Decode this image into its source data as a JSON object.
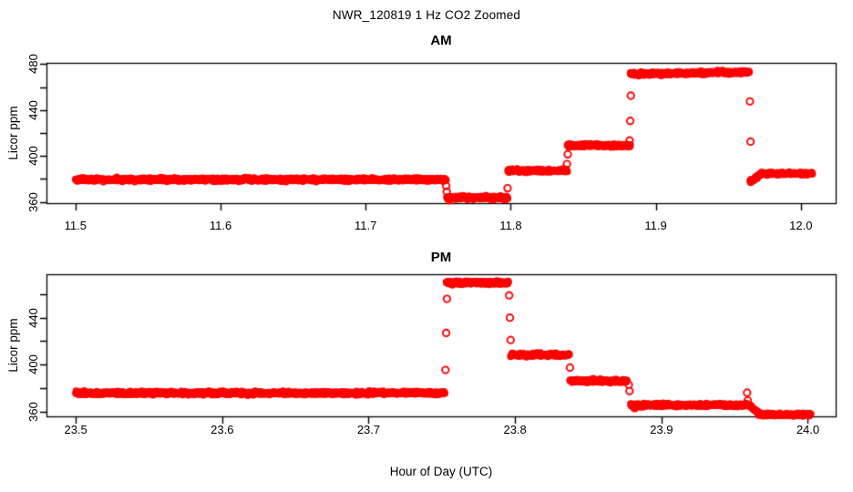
{
  "title": "NWR_120819  1 Hz CO2 Zoomed",
  "xlabel": "Hour of Day (UTC)",
  "point_color": "#ff0000",
  "axis_color": "#000000",
  "chart_data": [
    {
      "type": "scatter",
      "panel": "AM",
      "title": "AM",
      "ylabel": "Licor ppm",
      "marker": "open-circle",
      "legend": "none",
      "grid": false,
      "xlim": [
        11.48,
        12.024
      ],
      "ylim": [
        359,
        481
      ],
      "xticks": [
        {
          "v": 11.5,
          "t": "11.5"
        },
        {
          "v": 11.6,
          "t": "11.6"
        },
        {
          "v": 11.7,
          "t": "11.7"
        },
        {
          "v": 11.8,
          "t": "11.8"
        },
        {
          "v": 11.9,
          "t": "11.9"
        },
        {
          "v": 12.0,
          "t": "12.0"
        }
      ],
      "yticks": [
        {
          "v": 360,
          "t": "360"
        },
        {
          "v": 400,
          "t": "400"
        },
        {
          "v": 440,
          "t": "440"
        },
        {
          "v": 480,
          "t": "480"
        }
      ],
      "yticks_minor": [
        380,
        420,
        460
      ],
      "segments": [
        {
          "x0": 11.5,
          "x1": 11.7555,
          "y": 379.5,
          "noise": 1.4
        },
        {
          "x0": 11.756,
          "x1": 11.798,
          "y": 363.8,
          "noise": 1.5
        },
        {
          "x0": 11.798,
          "x1": 11.839,
          "y": 387.3,
          "noise": 1.4
        },
        {
          "x0": 11.839,
          "x1": 11.8825,
          "y": 409.3,
          "noise": 1.3
        },
        {
          "x0": 11.8825,
          "x1": 11.9645,
          "y0": 471.3,
          "y1": 473.0,
          "noise": 1.4
        },
        {
          "x0": 11.965,
          "x1": 11.972,
          "y0": 377.5,
          "y1": 384.3,
          "noise": 1.3
        },
        {
          "x0": 11.972,
          "x1": 12.008,
          "y": 384.8,
          "noise": 1.2
        }
      ],
      "singles": [
        [
          11.7555,
          374.0
        ],
        [
          11.7559,
          369.0
        ],
        [
          11.7576,
          361.5
        ],
        [
          11.7978,
          372.0
        ],
        [
          11.8388,
          393.0
        ],
        [
          11.8393,
          401.5
        ],
        [
          11.882,
          413.5
        ],
        [
          11.8824,
          430.5
        ],
        [
          11.8828,
          452.5
        ],
        [
          11.9649,
          447.5
        ],
        [
          11.9653,
          412.5
        ]
      ]
    },
    {
      "type": "scatter",
      "panel": "PM",
      "title": "PM",
      "ylabel": "Licor ppm",
      "marker": "open-circle",
      "legend": "none",
      "grid": false,
      "xlim": [
        23.48,
        24.019
      ],
      "ylim": [
        356,
        477
      ],
      "xticks": [
        {
          "v": 23.5,
          "t": "23.5"
        },
        {
          "v": 23.6,
          "t": "23.6"
        },
        {
          "v": 23.7,
          "t": "23.7"
        },
        {
          "v": 23.8,
          "t": "23.8"
        },
        {
          "v": 23.9,
          "t": "23.9"
        },
        {
          "v": 24.0,
          "t": "24.0"
        }
      ],
      "yticks": [
        {
          "v": 360,
          "t": "360"
        },
        {
          "v": 400,
          "t": "400"
        },
        {
          "v": 440,
          "t": "440"
        }
      ],
      "yticks_minor": [
        380,
        420,
        460
      ],
      "segments": [
        {
          "x0": 23.5,
          "x1": 23.752,
          "y": 375.8,
          "noise": 1.4
        },
        {
          "x0": 23.753,
          "x1": 23.7955,
          "y": 469.8,
          "noise": 1.4
        },
        {
          "x0": 23.797,
          "x1": 23.837,
          "y": 408.3,
          "noise": 1.3
        },
        {
          "x0": 23.8375,
          "x1": 23.8765,
          "y": 386.3,
          "noise": 1.3
        },
        {
          "x0": 23.879,
          "x1": 23.882,
          "y0": 367.0,
          "y1": 362.8,
          "noise": 1.2
        },
        {
          "x0": 23.881,
          "x1": 23.9585,
          "y": 365.6,
          "noise": 1.3
        },
        {
          "x0": 23.959,
          "x1": 23.9665,
          "y0": 366.5,
          "y1": 358.5,
          "noise": 1.2
        },
        {
          "x0": 23.9665,
          "x1": 24.002,
          "y": 357.5,
          "noise": 1.1
        }
      ],
      "singles": [
        [
          23.7525,
          395.5
        ],
        [
          23.753,
          427.0
        ],
        [
          23.7535,
          456.0
        ],
        [
          23.796,
          459.0
        ],
        [
          23.7965,
          440.0
        ],
        [
          23.797,
          421.0
        ],
        [
          23.8375,
          397.5
        ],
        [
          23.8777,
          383.0
        ],
        [
          23.8782,
          377.5
        ],
        [
          23.9585,
          376.2
        ],
        [
          23.959,
          369.5
        ]
      ]
    }
  ]
}
